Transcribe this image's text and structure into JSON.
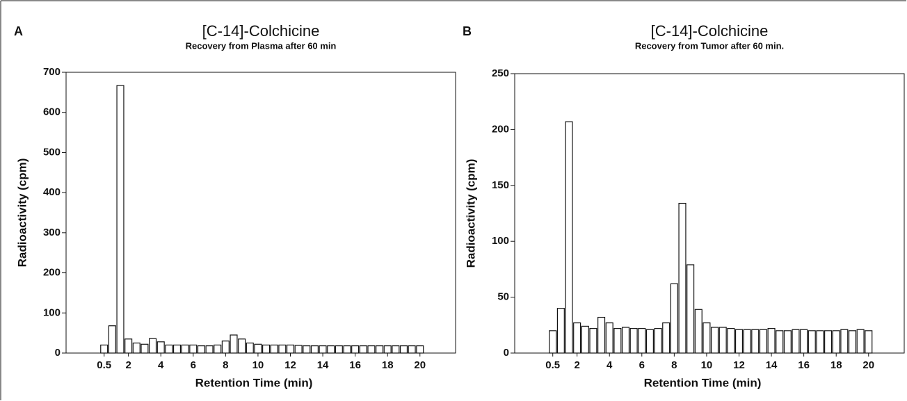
{
  "chart_data": [
    {
      "type": "bar",
      "panel_label": "A",
      "title": "[C-14]-Colchicine",
      "subtitle": "Recovery from Plasma after 60 min",
      "x_label": "Retention Time (min)",
      "y_label": "Radioactivity (cpm)",
      "x": [
        0.5,
        1,
        1.5,
        2,
        2.5,
        3,
        3.5,
        4,
        4.5,
        5,
        5.5,
        6,
        6.5,
        7,
        7.5,
        8,
        8.5,
        9,
        9.5,
        10,
        10.5,
        11,
        11.5,
        12,
        12.5,
        13,
        13.5,
        14,
        14.5,
        15,
        15.5,
        16,
        16.5,
        17,
        17.5,
        18,
        18.5,
        19,
        19.5,
        20
      ],
      "values": [
        20,
        68,
        667,
        35,
        25,
        22,
        36,
        28,
        20,
        20,
        20,
        20,
        18,
        18,
        20,
        30,
        45,
        35,
        25,
        22,
        20,
        20,
        20,
        20,
        19,
        18,
        18,
        18,
        18,
        18,
        18,
        18,
        18,
        18,
        18,
        18,
        18,
        18,
        18,
        18
      ],
      "color": "#ffffff",
      "xlim": [
        -1.85,
        22.2
      ],
      "xticks": [
        0.5,
        2,
        4,
        6,
        8,
        10,
        12,
        14,
        16,
        18,
        20
      ],
      "ylim": [
        0,
        700
      ],
      "yticks": [
        0,
        100,
        200,
        300,
        400,
        500,
        600,
        700
      ]
    },
    {
      "type": "bar",
      "panel_label": "B",
      "title": "[C-14]-Colchicine",
      "subtitle": "Recovery from Tumor after 60 min.",
      "x_label": "Retention Time (min)",
      "y_label": "Radioactivity (cpm)",
      "x": [
        0.5,
        1,
        1.5,
        2,
        2.5,
        3,
        3.5,
        4,
        4.5,
        5,
        5.5,
        6,
        6.5,
        7,
        7.5,
        8,
        8.5,
        9,
        9.5,
        10,
        10.5,
        11,
        11.5,
        12,
        12.5,
        13,
        13.5,
        14,
        14.5,
        15,
        15.5,
        16,
        16.5,
        17,
        17.5,
        18,
        18.5,
        19,
        19.5,
        20
      ],
      "values": [
        20,
        40,
        207,
        27,
        24,
        22,
        32,
        27,
        22,
        23,
        22,
        22,
        21,
        22,
        27,
        62,
        134,
        79,
        39,
        27,
        23,
        23,
        22,
        21,
        21,
        21,
        21,
        22,
        20,
        20,
        21,
        21,
        20,
        20,
        20,
        20,
        21,
        20,
        21,
        20
      ],
      "color": "#ffffff",
      "xlim": [
        -1.85,
        22.2
      ],
      "xticks": [
        0.5,
        2,
        4,
        6,
        8,
        10,
        12,
        14,
        16,
        18,
        20
      ],
      "ylim": [
        0,
        250
      ],
      "yticks": [
        0,
        50,
        100,
        150,
        200,
        250
      ]
    }
  ]
}
